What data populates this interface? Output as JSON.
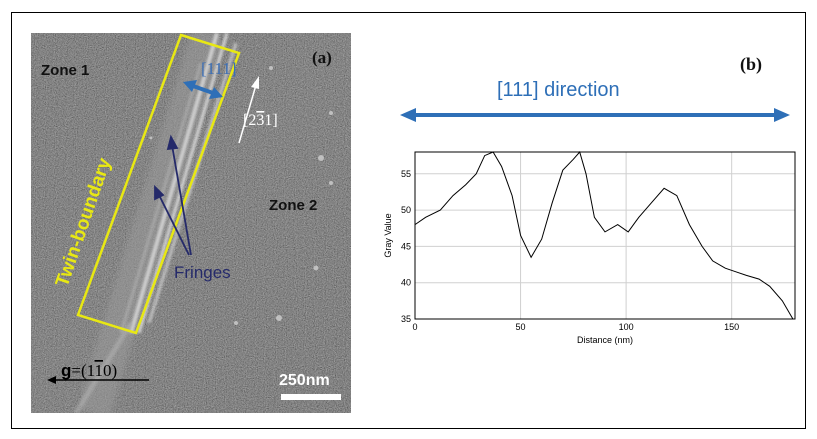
{
  "panel_a": {
    "label": "(a)",
    "zone1": "Zone 1",
    "zone2": "Zone 2",
    "twin_boundary": "Twin-boundary",
    "fringes": "Fringes",
    "dir_111": "[111]",
    "dir_231": "[2",
    "dir_231_bar": "3",
    "dir_231_end": "1]",
    "g_vector_bold": "g",
    "g_vector_eq": "=(1",
    "g_vector_bar": "1",
    "g_vector_end": "0)",
    "scale_bar": "250nm",
    "colors": {
      "yellow": "#e8e813",
      "blue_arrow": "#2e6fb7",
      "fringe_arrow": "#252a6a"
    }
  },
  "panel_b": {
    "label": "(b)",
    "direction_label": "[111] direction",
    "arrow_color": "#2e6fb7"
  },
  "chart_data": {
    "type": "line",
    "xlabel": "Distance (nm)",
    "ylabel": "Gray Value",
    "xlim": [
      0,
      180
    ],
    "ylim": [
      35,
      58
    ],
    "xticks": [
      0,
      50,
      100,
      150
    ],
    "yticks": [
      35,
      40,
      45,
      50,
      55
    ],
    "grid": true,
    "x": [
      0,
      5,
      12,
      18,
      24,
      29,
      33,
      37,
      41,
      46,
      50,
      55,
      60,
      65,
      70,
      75,
      78,
      81,
      85,
      90,
      96,
      101,
      106,
      112,
      118,
      124,
      130,
      136,
      141,
      147,
      152,
      157,
      163,
      168,
      174,
      179
    ],
    "y": [
      48,
      49,
      50,
      52,
      53.5,
      55,
      57.5,
      58,
      56,
      52,
      46.5,
      43.5,
      46,
      51,
      55.5,
      57,
      58,
      55,
      49,
      47,
      48,
      47,
      49,
      51,
      53,
      52,
      48,
      45,
      43,
      42,
      41.5,
      41,
      40.5,
      39.5,
      37.5,
      35
    ]
  }
}
